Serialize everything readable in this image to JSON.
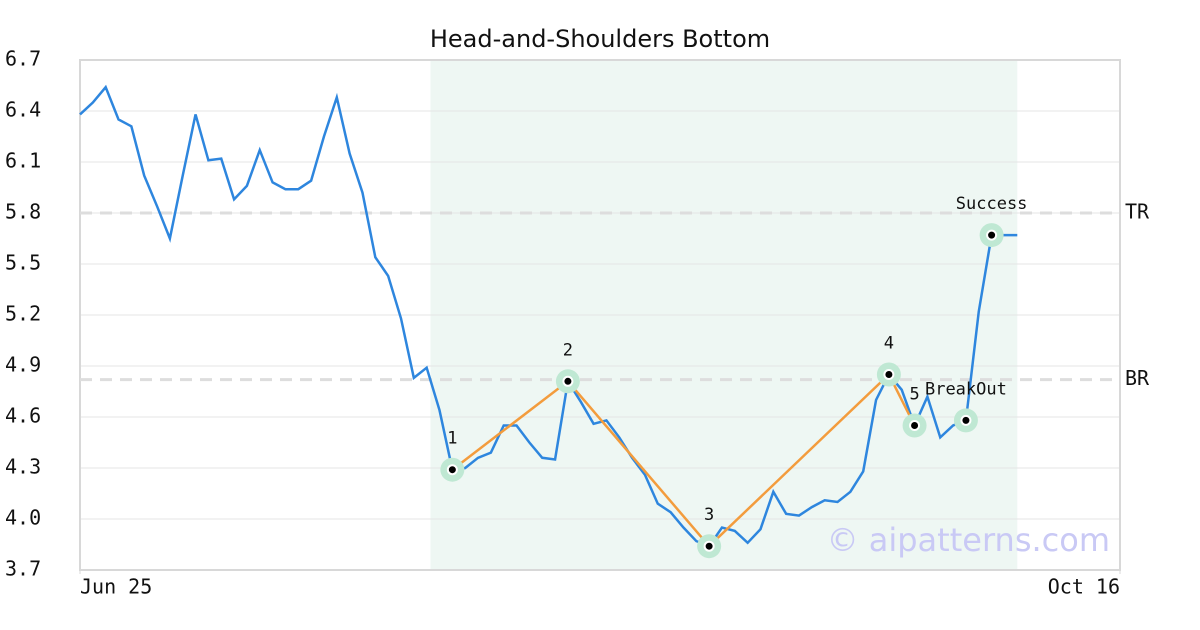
{
  "chart_data": {
    "type": "line",
    "title": "Head-and-Shoulders Bottom",
    "x": [
      0,
      1,
      2,
      3,
      4,
      5,
      6,
      7,
      8,
      9,
      10,
      11,
      12,
      13,
      14,
      15,
      16,
      17,
      18,
      19,
      20,
      21,
      22,
      23,
      24,
      25,
      26,
      27,
      28,
      29,
      30,
      31,
      32,
      33,
      34,
      35,
      36,
      37,
      38,
      39,
      40,
      41,
      42,
      43,
      44,
      45,
      46,
      47,
      48,
      49,
      50,
      51,
      52,
      53,
      54,
      55,
      56,
      57,
      58,
      59,
      60,
      61,
      62,
      63,
      64,
      65,
      66,
      67,
      68,
      69,
      70,
      71,
      72,
      73
    ],
    "series": [
      {
        "color": "#2e86de",
        "values": [
          6.38,
          6.45,
          6.54,
          6.35,
          6.31,
          6.02,
          5.84,
          5.65,
          6.02,
          6.38,
          6.11,
          6.12,
          5.88,
          5.96,
          6.17,
          5.98,
          5.94,
          5.94,
          5.99,
          6.25,
          6.48,
          6.15,
          5.92,
          5.54,
          5.43,
          5.18,
          4.83,
          4.89,
          4.64,
          4.29,
          4.3,
          4.36,
          4.39,
          4.55,
          4.55,
          4.45,
          4.36,
          4.35,
          4.81,
          4.69,
          4.56,
          4.58,
          4.48,
          4.36,
          4.26,
          4.09,
          4.04,
          3.95,
          3.87,
          3.84,
          3.95,
          3.93,
          3.86,
          3.94,
          4.16,
          4.03,
          4.02,
          4.07,
          4.11,
          4.1,
          4.16,
          4.28,
          4.7,
          4.85,
          4.76,
          4.55,
          4.72,
          4.48,
          4.55,
          4.58,
          5.22,
          5.67,
          5.67,
          5.67
        ]
      }
    ],
    "pattern": {
      "color": "#f39c3d",
      "labels": [
        "1",
        "2",
        "3",
        "4",
        "5"
      ],
      "x": [
        29,
        38,
        49,
        63,
        65
      ],
      "values": [
        4.29,
        4.81,
        3.84,
        4.85,
        4.55
      ]
    },
    "signals": {
      "labels": [
        "BreakOut",
        "Success"
      ],
      "x": [
        69,
        71
      ],
      "values": [
        4.58,
        5.67
      ]
    },
    "hlines": [
      {
        "label": "TR",
        "value": 5.8
      },
      {
        "label": "BR",
        "value": 4.82
      }
    ],
    "shade_x": [
      27.3,
      73
    ],
    "watermark": "© aipatterns.com",
    "xlim": [
      0,
      81
    ],
    "xticks": [
      {
        "value": 0,
        "label": "Jun 25"
      },
      {
        "value": 81,
        "label": "Oct 16"
      }
    ],
    "ylim": [
      3.7,
      6.7
    ],
    "yticks": [
      3.7,
      {
        "value": 4.0,
        "label": "4.0"
      },
      4.3,
      4.6,
      4.9,
      5.2,
      5.5,
      5.8,
      6.1,
      6.4,
      6.7
    ],
    "grid": true
  }
}
